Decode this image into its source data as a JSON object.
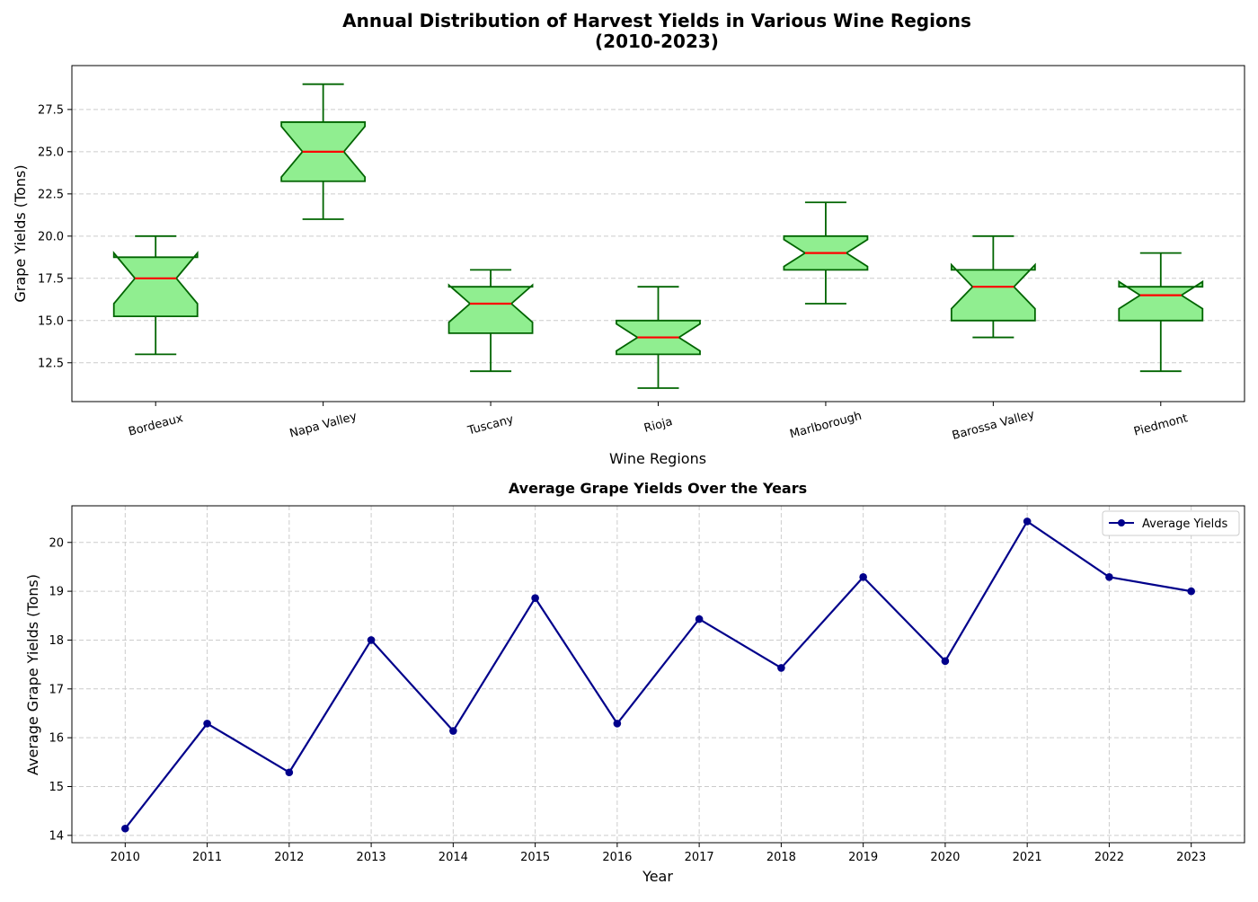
{
  "figure": {
    "title_line1": "Annual Distribution of Harvest Yields in Various Wine Regions",
    "title_line2": "(2010-2023)"
  },
  "chart_data": [
    {
      "type": "box",
      "title": "Annual Distribution of Harvest Yields in Various Wine Regions (2010-2023)",
      "xlabel": "Wine Regions",
      "ylabel": "Grape Yields (Tons)",
      "ylim": [
        10.2,
        30.1
      ],
      "yticks": [
        12.5,
        15.0,
        17.5,
        20.0,
        22.5,
        25.0,
        27.5
      ],
      "grid": "y",
      "notched": true,
      "colors": {
        "box_fill": "#90ee90",
        "box_edge": "#006400",
        "median": "#ff0000",
        "whisker": "#006400",
        "grid": "#cccccc"
      },
      "categories": [
        "Bordeaux",
        "Napa Valley",
        "Tuscany",
        "Rioja",
        "Marlborough",
        "Barossa Valley",
        "Piedmont"
      ],
      "boxes": [
        {
          "min": 13.0,
          "q1": 15.25,
          "median": 17.5,
          "q3": 18.75,
          "max": 20.0,
          "notch_low": 16.0,
          "notch_high": 19.0
        },
        {
          "min": 21.0,
          "q1": 23.25,
          "median": 25.0,
          "q3": 26.75,
          "max": 29.0,
          "notch_low": 23.5,
          "notch_high": 26.5
        },
        {
          "min": 12.0,
          "q1": 14.25,
          "median": 16.0,
          "q3": 17.0,
          "max": 18.0,
          "notch_low": 14.9,
          "notch_high": 17.1
        },
        {
          "min": 11.0,
          "q1": 13.0,
          "median": 14.0,
          "q3": 15.0,
          "max": 17.0,
          "notch_low": 13.2,
          "notch_high": 14.8
        },
        {
          "min": 16.0,
          "q1": 18.0,
          "median": 19.0,
          "q3": 20.0,
          "max": 22.0,
          "notch_low": 18.2,
          "notch_high": 19.8
        },
        {
          "min": 14.0,
          "q1": 15.0,
          "median": 17.0,
          "q3": 18.0,
          "max": 20.0,
          "notch_low": 15.7,
          "notch_high": 18.3
        },
        {
          "min": 12.0,
          "q1": 15.0,
          "median": 16.5,
          "q3": 17.0,
          "max": 19.0,
          "notch_low": 15.7,
          "notch_high": 17.3
        }
      ]
    },
    {
      "type": "line",
      "title": "Average Grape Yields Over the Years",
      "xlabel": "Year",
      "ylabel": "Average Grape Yields (Tons)",
      "x": [
        2010,
        2011,
        2012,
        2013,
        2014,
        2015,
        2016,
        2017,
        2018,
        2019,
        2020,
        2021,
        2022,
        2023
      ],
      "xlim": [
        2009.35,
        2023.65
      ],
      "ylim": [
        13.85,
        20.75
      ],
      "yticks": [
        14,
        15,
        16,
        17,
        18,
        19,
        20
      ],
      "grid": "both",
      "legend_position": "top-right",
      "series": [
        {
          "name": "Average Yields",
          "color": "#00008b",
          "marker": "circle",
          "values": [
            14.14,
            16.29,
            15.29,
            18.0,
            16.14,
            18.86,
            16.29,
            18.43,
            17.43,
            19.29,
            17.57,
            20.43,
            19.29,
            19.0
          ]
        }
      ]
    }
  ]
}
